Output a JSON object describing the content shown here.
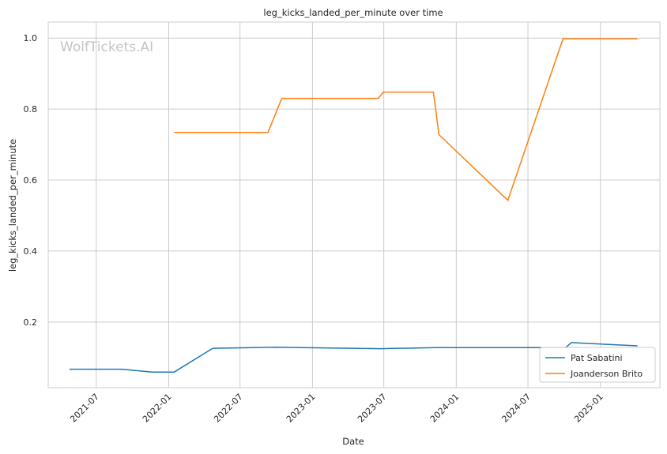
{
  "chart_data": {
    "type": "line",
    "title": "leg_kicks_landed_per_minute over time",
    "xlabel": "Date",
    "ylabel": "leg_kicks_landed_per_minute",
    "watermark": "WolfTickets.AI",
    "x_ticks": [
      "2021-07",
      "2022-01",
      "2022-07",
      "2023-01",
      "2023-07",
      "2024-01",
      "2024-07",
      "2025-01"
    ],
    "y_ticks": [
      "0.2",
      "0.4",
      "0.6",
      "0.8",
      "1.0"
    ],
    "xlim": [
      "2021-03-01",
      "2025-06-01"
    ],
    "ylim": [
      0.015,
      1.045
    ],
    "grid": true,
    "legend_position": "lower-right",
    "series": [
      {
        "name": "Pat Sabatini",
        "color": "#1f77b4",
        "points": [
          [
            "2021-04-24",
            0.067
          ],
          [
            "2021-09-04",
            0.067
          ],
          [
            "2021-11-20",
            0.059
          ],
          [
            "2022-01-15",
            0.059
          ],
          [
            "2022-04-23",
            0.126
          ],
          [
            "2022-10-01",
            0.129
          ],
          [
            "2023-06-24",
            0.125
          ],
          [
            "2023-11-11",
            0.128
          ],
          [
            "2024-10-05",
            0.128
          ],
          [
            "2024-10-19",
            0.142
          ],
          [
            "2025-04-05",
            0.133
          ]
        ]
      },
      {
        "name": "Joanderson Brito",
        "color": "#ff7f0e",
        "points": [
          [
            "2022-01-15",
            0.734
          ],
          [
            "2022-09-10",
            0.734
          ],
          [
            "2022-10-15",
            0.83
          ],
          [
            "2023-06-17",
            0.83
          ],
          [
            "2023-06-30",
            0.848
          ],
          [
            "2023-11-04",
            0.848
          ],
          [
            "2023-11-18",
            0.728
          ],
          [
            "2024-05-11",
            0.543
          ],
          [
            "2024-09-28",
            0.998
          ],
          [
            "2025-04-05",
            0.998
          ]
        ]
      }
    ]
  }
}
